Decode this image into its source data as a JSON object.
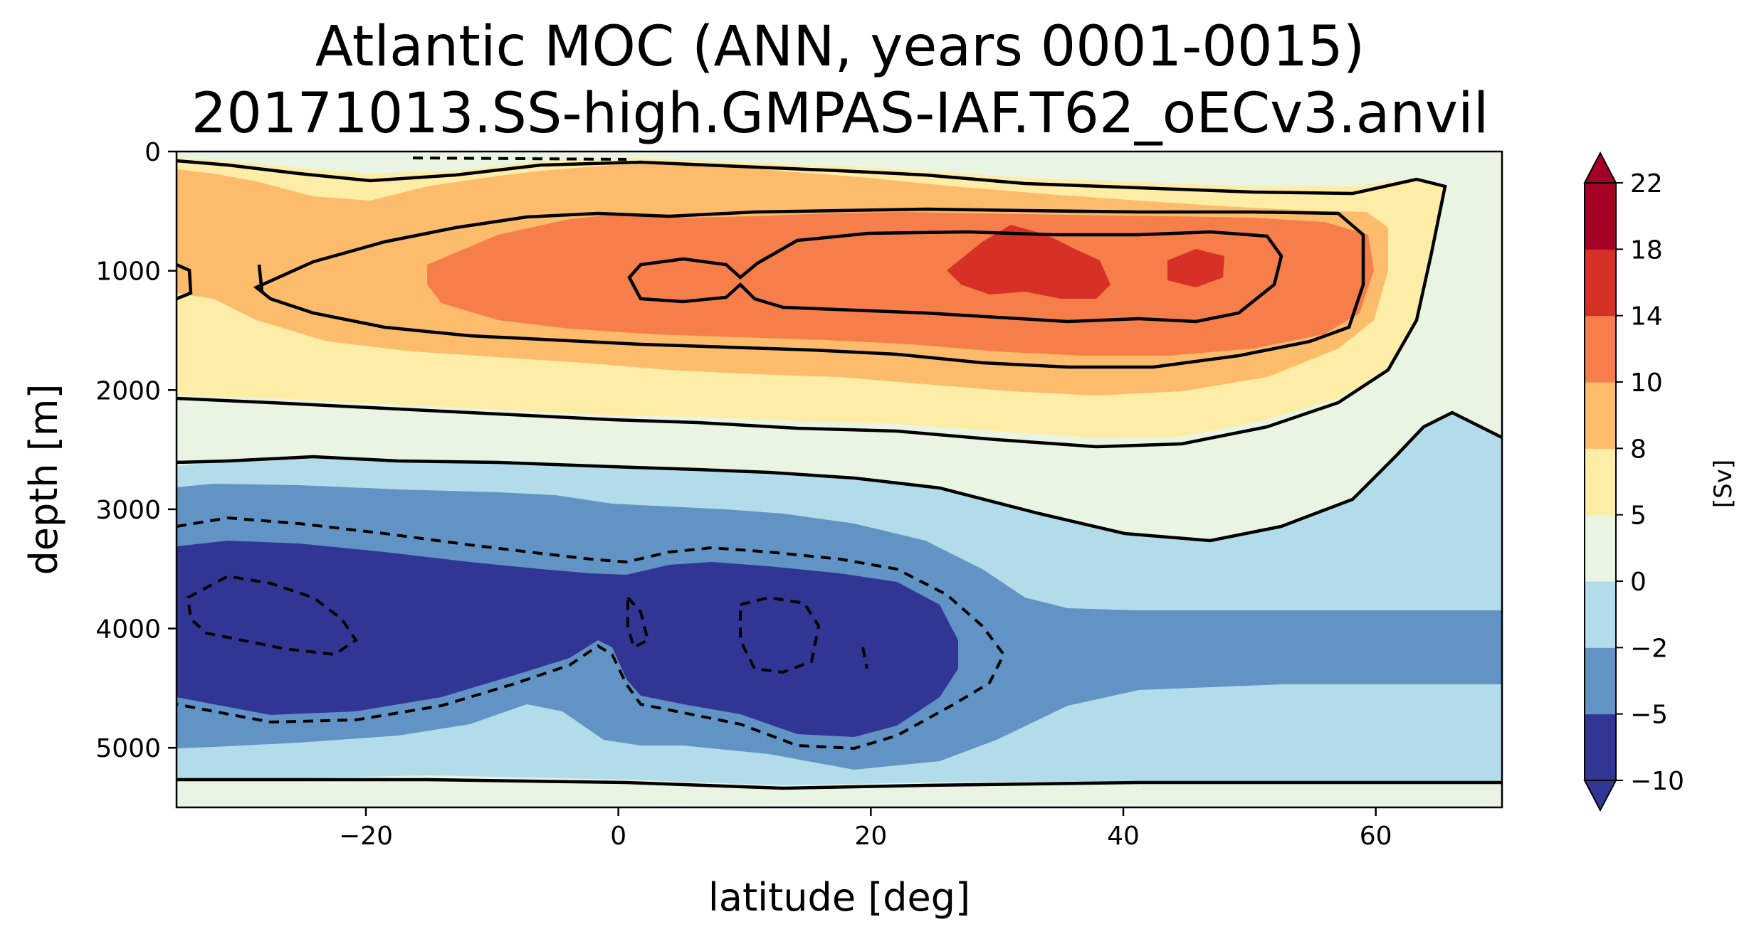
{
  "chart_data": {
    "type": "heatmap",
    "title_line1": "Atlantic MOC (ANN, years 0001-0015)",
    "title_line2": "20171013.SS-high.GMPAS-IAF.T62_oECv3.anvil",
    "xlabel": "latitude [deg]",
    "ylabel": "depth [m]",
    "xlim": [
      -35,
      70
    ],
    "ylim": [
      5500,
      0
    ],
    "x_ticks": [
      -20,
      0,
      20,
      40,
      60
    ],
    "x_tick_labels": [
      "−20",
      "0",
      "20",
      "40",
      "60"
    ],
    "y_ticks": [
      0,
      1000,
      2000,
      3000,
      4000,
      5000
    ],
    "y_tick_labels": [
      "0",
      "1000",
      "2000",
      "3000",
      "4000",
      "5000"
    ],
    "colorbar": {
      "label": "[Sv]",
      "levels": [
        -10,
        -5,
        -2,
        0,
        5,
        8,
        10,
        14,
        18,
        22
      ],
      "level_labels": [
        "−10",
        "−5",
        "−2",
        "0",
        "5",
        "8",
        "10",
        "14",
        "18",
        "22"
      ],
      "colors": [
        "#313695",
        "#6194c4",
        "#b3dcea",
        "#eaf4e3",
        "#fdeda6",
        "#fdbb6c",
        "#f67e4b",
        "#d73027",
        "#a50026"
      ],
      "extend": "both"
    },
    "colors": {
      "pos_band_1": "#eaf4e3",
      "pos_band_2": "#fdeda6",
      "pos_band_3": "#fdbb6c",
      "pos_band_4": "#f67e4b",
      "pos_band_5": "#d73027",
      "neg_band_1": "#b3dcea",
      "neg_band_2": "#6194c4",
      "neg_band_3": "#313695"
    }
  }
}
